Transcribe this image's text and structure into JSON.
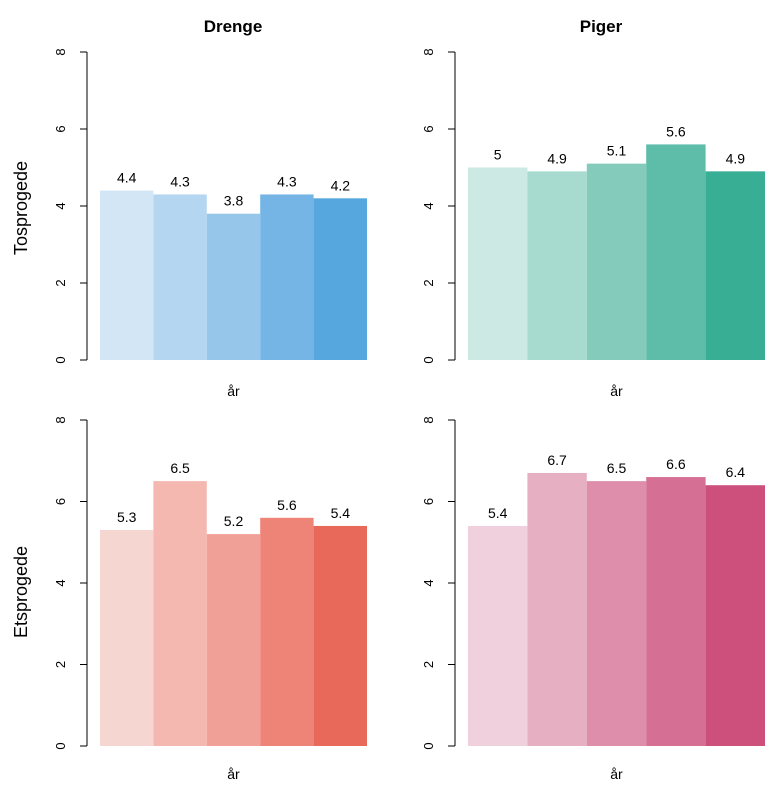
{
  "columns": [
    "Drenge",
    "Piger"
  ],
  "rows": [
    "Tosprogede",
    "Etsprogede"
  ],
  "chart_data": [
    {
      "type": "bar",
      "group": "Drenge",
      "row": "Tosprogede",
      "values": [
        4.4,
        4.3,
        3.8,
        4.3,
        4.2
      ],
      "value_labels": [
        "4.4",
        "4.3",
        "3.8",
        "4.3",
        "4.2"
      ],
      "colors": [
        "#d3e6f6",
        "#b5d6f0",
        "#96c7ea",
        "#74b5e6",
        "#55a7de"
      ],
      "xlabel": "år",
      "ylim": [
        0,
        8
      ],
      "yticks": [
        "0",
        "2",
        "4",
        "6",
        "8"
      ]
    },
    {
      "type": "bar",
      "group": "Piger",
      "row": "Tosprogede",
      "values": [
        5.0,
        4.9,
        5.1,
        5.6,
        4.9
      ],
      "value_labels": [
        "5",
        "4.9",
        "5.1",
        "5.6",
        "4.9"
      ],
      "colors": [
        "#cde9e3",
        "#a8dbd0",
        "#84cbbb",
        "#5ebda9",
        "#38af95"
      ],
      "xlabel": "år",
      "ylim": [
        0,
        8
      ],
      "yticks": [
        "0",
        "2",
        "4",
        "6",
        "8"
      ]
    },
    {
      "type": "bar",
      "group": "Drenge",
      "row": "Etsprogede",
      "values": [
        5.3,
        6.5,
        5.2,
        5.6,
        5.4
      ],
      "value_labels": [
        "5.3",
        "6.5",
        "5.2",
        "5.6",
        "5.4"
      ],
      "colors": [
        "#f6d6d0",
        "#f4b8b0",
        "#f0a096",
        "#ee8378",
        "#e8685a"
      ],
      "xlabel": "år",
      "ylim": [
        0,
        8
      ],
      "yticks": [
        "0",
        "2",
        "4",
        "6",
        "8"
      ]
    },
    {
      "type": "bar",
      "group": "Piger",
      "row": "Etsprogede",
      "values": [
        5.4,
        6.7,
        6.5,
        6.6,
        6.4
      ],
      "value_labels": [
        "5.4",
        "6.7",
        "6.5",
        "6.6",
        "6.4"
      ],
      "colors": [
        "#efd0dc",
        "#e7afc2",
        "#de8eab",
        "#d56f93",
        "#cc4f7c"
      ],
      "xlabel": "år",
      "ylim": [
        0,
        8
      ],
      "yticks": [
        "0",
        "2",
        "4",
        "6",
        "8"
      ]
    }
  ]
}
